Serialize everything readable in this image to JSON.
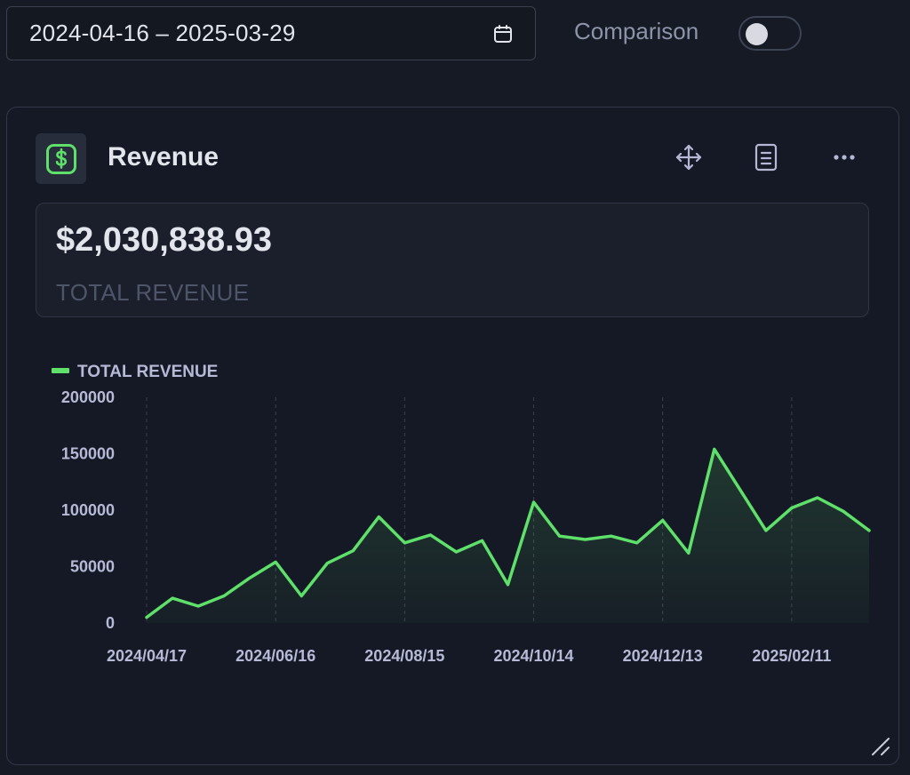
{
  "filters": {
    "date_range": "2024-04-16 – 2025-03-29",
    "comparison_label": "Comparison",
    "comparison_enabled": false
  },
  "card": {
    "title": "Revenue",
    "icon": "dollar-icon",
    "toolbar_icons": [
      "move-icon",
      "document-icon",
      "more-icon"
    ],
    "metric_value": "$2,030,838.93",
    "metric_label": "TOTAL REVENUE"
  },
  "colors": {
    "accent": "#5ee06a",
    "background": "#161a24",
    "card": "#151925",
    "axis_text": "#b6bad6"
  },
  "chart_data": {
    "type": "area",
    "legend": "TOTAL REVENUE",
    "legend_position": "top-left",
    "series": [
      {
        "name": "TOTAL REVENUE",
        "values": [
          5000,
          22000,
          15000,
          24000,
          40000,
          54000,
          24000,
          53000,
          64000,
          94000,
          71000,
          78000,
          63000,
          73000,
          34000,
          107000,
          77000,
          74000,
          77000,
          71000,
          91000,
          62000,
          154000,
          118000,
          82000,
          102000,
          111000,
          99000,
          82000
        ]
      }
    ],
    "y_ticks": [
      "200000",
      "150000",
      "100000",
      "50000",
      "0"
    ],
    "ylim": [
      0,
      200000
    ],
    "x_tick_labels": [
      "2024/04/17",
      "2024/06/16",
      "2024/08/15",
      "2024/10/14",
      "2024/12/13",
      "2025/02/11"
    ],
    "x_tick_indices": [
      0,
      5,
      10,
      15,
      20,
      25
    ],
    "grid": "vertical dashed"
  }
}
